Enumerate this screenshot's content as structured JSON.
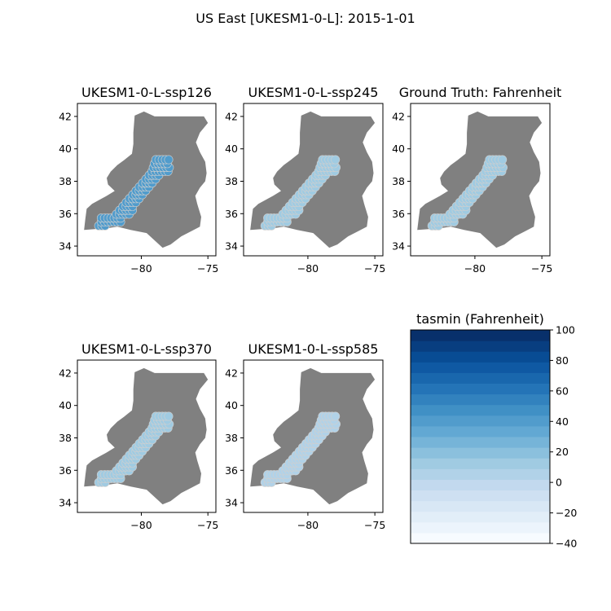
{
  "figure": {
    "title": "US East [UKESM1-0-L]: 2015-1-01"
  },
  "chart_data": [
    {
      "type": "scatter",
      "title": "UKESM1-0-L-ssp126",
      "x_ticks": [
        "−80",
        "−75"
      ],
      "y_ticks": [
        "34",
        "36",
        "38",
        "40",
        "42"
      ],
      "xlim": [
        -84.8,
        -74.4
      ],
      "ylim": [
        33.4,
        42.8
      ],
      "point_value_f": 40
    },
    {
      "type": "scatter",
      "title": "UKESM1-0-L-ssp245",
      "x_ticks": [
        "−80",
        "−75"
      ],
      "y_ticks": [
        "34",
        "36",
        "38",
        "40",
        "42"
      ],
      "xlim": [
        -84.8,
        -74.4
      ],
      "ylim": [
        33.4,
        42.8
      ],
      "point_value_f": 10
    },
    {
      "type": "scatter",
      "title": "Ground Truth: Fahrenheit",
      "x_ticks": [
        "−80",
        "−75"
      ],
      "y_ticks": [
        "34",
        "36",
        "38",
        "40",
        "42"
      ],
      "xlim": [
        -84.8,
        -74.4
      ],
      "ylim": [
        33.4,
        42.8
      ],
      "point_value_f": 12
    },
    {
      "type": "scatter",
      "title": "UKESM1-0-L-ssp370",
      "x_ticks": [
        "−80",
        "−75"
      ],
      "y_ticks": [
        "34",
        "36",
        "38",
        "40",
        "42"
      ],
      "xlim": [
        -84.8,
        -74.4
      ],
      "ylim": [
        33.4,
        42.8
      ],
      "point_value_f": 15
    },
    {
      "type": "scatter",
      "title": "UKESM1-0-L-ssp585",
      "x_ticks": [
        "−80",
        "−75"
      ],
      "y_ticks": [
        "34",
        "36",
        "38",
        "40",
        "42"
      ],
      "xlim": [
        -84.8,
        -74.4
      ],
      "ylim": [
        33.4,
        42.8
      ],
      "point_value_f": 5
    }
  ],
  "colorbar": {
    "title": "tasmin (Fahrenheit)",
    "ticks": [
      100,
      80,
      60,
      40,
      20,
      0,
      -20,
      -40
    ],
    "tick_labels": [
      "100",
      "80",
      "60",
      "40",
      "20",
      "0",
      "−20",
      "−40"
    ],
    "range": [
      -40,
      100
    ],
    "levels": 20,
    "colormap": "Blues"
  },
  "colors": {
    "land": "#808080",
    "axis": "#000000",
    "point_edge": "#cfcfcf"
  }
}
